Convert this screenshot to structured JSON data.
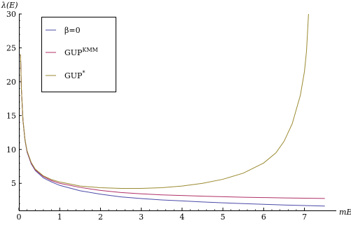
{
  "chart_data": {
    "type": "line",
    "title": "",
    "xlabel": "mE",
    "ylabel": "λ(E)",
    "xlim": [
      0,
      7.6
    ],
    "ylim": [
      1,
      30
    ],
    "xticks": [
      0,
      1,
      2,
      3,
      4,
      5,
      6,
      7
    ],
    "yticks": [
      5,
      10,
      15,
      20,
      25,
      30
    ],
    "x_tick_labels": [
      "0",
      "1",
      "2",
      "3",
      "4",
      "5",
      "6",
      "7"
    ],
    "y_tick_labels": [
      "5",
      "10",
      "15",
      "20",
      "25",
      "30"
    ],
    "legend_position": "top-left",
    "grid": false,
    "series": [
      {
        "name": "β=0",
        "label_main": "β=0",
        "label_sup": "",
        "color": "#4a4aa8",
        "x": [
          0.04,
          0.06,
          0.1,
          0.15,
          0.2,
          0.3,
          0.4,
          0.6,
          0.8,
          1.0,
          1.5,
          2.0,
          2.5,
          3.0,
          3.5,
          4.0,
          4.5,
          5.0,
          5.5,
          6.0,
          6.5,
          7.0,
          7.5
        ],
        "y": [
          24.0,
          19.0,
          14.2,
          11.3,
          9.6,
          7.9,
          6.9,
          5.8,
          5.2,
          4.7,
          3.9,
          3.4,
          3.0,
          2.75,
          2.55,
          2.4,
          2.25,
          2.12,
          2.0,
          1.9,
          1.8,
          1.72,
          1.65
        ]
      },
      {
        "name": "GUP^KMM",
        "label_main": "GUP",
        "label_sup": "KMM",
        "color": "#b03068",
        "x": [
          0.04,
          0.06,
          0.1,
          0.15,
          0.2,
          0.3,
          0.4,
          0.6,
          0.8,
          1.0,
          1.5,
          2.0,
          2.5,
          3.0,
          3.5,
          4.0,
          4.5,
          5.0,
          5.5,
          6.0,
          6.5,
          7.0,
          7.5
        ],
        "y": [
          24.0,
          19.0,
          14.3,
          11.4,
          9.7,
          8.0,
          7.0,
          6.0,
          5.4,
          5.0,
          4.4,
          3.95,
          3.65,
          3.45,
          3.3,
          3.2,
          3.1,
          3.02,
          2.95,
          2.9,
          2.85,
          2.8,
          2.77
        ]
      },
      {
        "name": "GUP*",
        "label_main": "GUP",
        "label_sup": "*",
        "color": "#9a8a30",
        "x": [
          0.04,
          0.06,
          0.1,
          0.15,
          0.2,
          0.3,
          0.4,
          0.6,
          0.8,
          1.0,
          1.5,
          2.0,
          2.5,
          3.0,
          3.5,
          4.0,
          4.5,
          5.0,
          5.5,
          6.0,
          6.3,
          6.5,
          6.7,
          6.9,
          7.0,
          7.05,
          7.1
        ],
        "y": [
          24.0,
          19.0,
          14.3,
          11.4,
          9.8,
          8.1,
          7.1,
          6.1,
          5.55,
          5.2,
          4.6,
          4.35,
          4.25,
          4.25,
          4.35,
          4.6,
          5.0,
          5.6,
          6.5,
          8.0,
          9.5,
          11.2,
          13.8,
          18.0,
          21.5,
          24.5,
          30.0
        ]
      }
    ]
  }
}
